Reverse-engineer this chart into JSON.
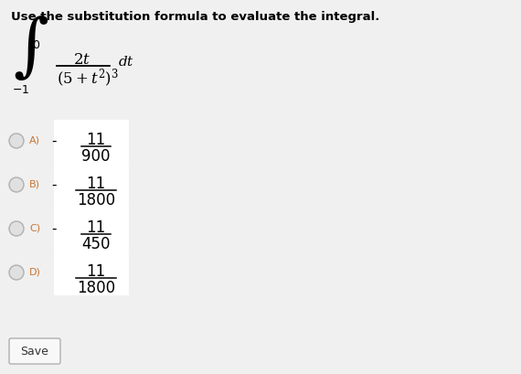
{
  "background_color": "#f0f0f0",
  "title": "Use the substitution formula to evaluate the integral.",
  "title_fontsize": 9.5,
  "title_color": "#000000",
  "options": [
    {
      "label": "A)",
      "sign": "-",
      "numerator": "11",
      "denominator": "900"
    },
    {
      "label": "B)",
      "sign": "-",
      "numerator": "11",
      "denominator": "1800"
    },
    {
      "label": "C)",
      "sign": "-",
      "numerator": "11",
      "denominator": "450"
    },
    {
      "label": "D)",
      "sign": "",
      "numerator": "11",
      "denominator": "1800"
    }
  ],
  "save_button": "Save",
  "option_label_color": "#c87533",
  "fraction_color": "#000000",
  "fraction_box_color": "#ffffff",
  "radio_edge_color": "#b0b0b0",
  "radio_fill_color": "#e0e0e0"
}
